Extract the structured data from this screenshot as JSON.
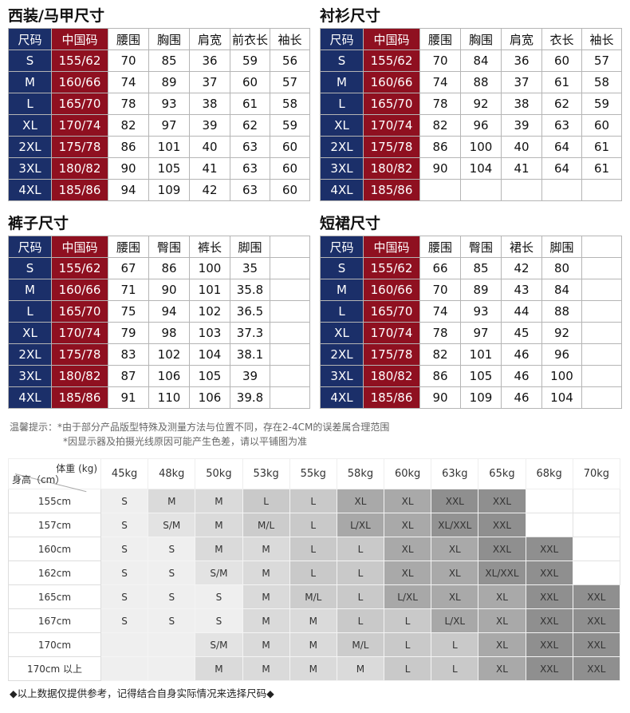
{
  "tables": [
    {
      "title": "西装/马甲尺寸",
      "headers": [
        "尺码",
        "中国码",
        "腰围",
        "胸围",
        "肩宽",
        "前衣长",
        "袖长"
      ],
      "rows": [
        [
          "S",
          "155/62",
          "70",
          "85",
          "36",
          "59",
          "56"
        ],
        [
          "M",
          "160/66",
          "74",
          "89",
          "37",
          "60",
          "57"
        ],
        [
          "L",
          "165/70",
          "78",
          "93",
          "38",
          "61",
          "58"
        ],
        [
          "XL",
          "170/74",
          "82",
          "97",
          "39",
          "62",
          "59"
        ],
        [
          "2XL",
          "175/78",
          "86",
          "101",
          "40",
          "63",
          "60"
        ],
        [
          "3XL",
          "180/82",
          "90",
          "105",
          "41",
          "63",
          "60"
        ],
        [
          "4XL",
          "185/86",
          "94",
          "109",
          "42",
          "63",
          "60"
        ]
      ]
    },
    {
      "title": "衬衫尺寸",
      "headers": [
        "尺码",
        "中国码",
        "腰围",
        "胸围",
        "肩宽",
        "衣长",
        "袖长"
      ],
      "rows": [
        [
          "S",
          "155/62",
          "70",
          "84",
          "36",
          "60",
          "57"
        ],
        [
          "M",
          "160/66",
          "74",
          "88",
          "37",
          "61",
          "58"
        ],
        [
          "L",
          "165/70",
          "78",
          "92",
          "38",
          "62",
          "59"
        ],
        [
          "XL",
          "170/74",
          "82",
          "96",
          "39",
          "63",
          "60"
        ],
        [
          "2XL",
          "175/78",
          "86",
          "100",
          "40",
          "64",
          "61"
        ],
        [
          "3XL",
          "180/82",
          "90",
          "104",
          "41",
          "64",
          "61"
        ],
        [
          "4XL",
          "185/86",
          "",
          "",
          "",
          "",
          ""
        ]
      ]
    },
    {
      "title": "裤子尺寸",
      "headers": [
        "尺码",
        "中国码",
        "腰围",
        "臀围",
        "裤长",
        "脚围",
        ""
      ],
      "rows": [
        [
          "S",
          "155/62",
          "67",
          "86",
          "100",
          "35",
          ""
        ],
        [
          "M",
          "160/66",
          "71",
          "90",
          "101",
          "35.8",
          ""
        ],
        [
          "L",
          "165/70",
          "75",
          "94",
          "102",
          "36.5",
          ""
        ],
        [
          "XL",
          "170/74",
          "79",
          "98",
          "103",
          "37.3",
          ""
        ],
        [
          "2XL",
          "175/78",
          "83",
          "102",
          "104",
          "38.1",
          ""
        ],
        [
          "3XL",
          "180/82",
          "87",
          "106",
          "105",
          "39",
          ""
        ],
        [
          "4XL",
          "185/86",
          "91",
          "110",
          "106",
          "39.8",
          ""
        ]
      ]
    },
    {
      "title": "短裙尺寸",
      "headers": [
        "尺码",
        "中国码",
        "腰围",
        "臀围",
        "裙长",
        "脚围",
        ""
      ],
      "rows": [
        [
          "S",
          "155/62",
          "66",
          "85",
          "42",
          "80",
          ""
        ],
        [
          "M",
          "160/66",
          "70",
          "89",
          "43",
          "84",
          ""
        ],
        [
          "L",
          "165/70",
          "74",
          "93",
          "44",
          "88",
          ""
        ],
        [
          "XL",
          "170/74",
          "78",
          "97",
          "45",
          "92",
          ""
        ],
        [
          "2XL",
          "175/78",
          "82",
          "101",
          "46",
          "96",
          ""
        ],
        [
          "3XL",
          "180/82",
          "86",
          "105",
          "46",
          "100",
          ""
        ],
        [
          "4XL",
          "185/86",
          "90",
          "109",
          "46",
          "104",
          ""
        ]
      ]
    }
  ],
  "notes": {
    "line1": "温馨提示：*由于部分产品版型特殊及测量方法与位置不同，存在2-4CM的误差属合理范围",
    "line2": "*因显示器及拍摄光线原因可能产生色差，请以平铺图为准"
  },
  "grid": {
    "weight_label": "体重 (kg)",
    "height_label": "身高（cm）",
    "weights": [
      "45kg",
      "48kg",
      "50kg",
      "53kg",
      "55kg",
      "58kg",
      "60kg",
      "63kg",
      "65kg",
      "68kg",
      "70kg"
    ],
    "rows": [
      {
        "h": "155cm",
        "s": [
          "S",
          "M",
          "M",
          "L",
          "L",
          "XL",
          "XL",
          "XXL",
          "XXL",
          null,
          null
        ]
      },
      {
        "h": "157cm",
        "s": [
          "S",
          "S/M",
          "M",
          "M/L",
          "L",
          "L/XL",
          "XL",
          "XL/XXL",
          "XXL",
          null,
          null
        ]
      },
      {
        "h": "160cm",
        "s": [
          "S",
          "S",
          "M",
          "M",
          "L",
          "L",
          "XL",
          "XL",
          "XXL",
          "XXL",
          null
        ]
      },
      {
        "h": "162cm",
        "s": [
          "S",
          "S",
          "S/M",
          "M",
          "L",
          "L",
          "XL",
          "XL",
          "XL/XXL",
          "XXL",
          null
        ]
      },
      {
        "h": "165cm",
        "s": [
          "S",
          "S",
          "S",
          "M",
          "M/L",
          "L",
          "L/XL",
          "XL",
          "XL",
          "XXL",
          "XXL"
        ]
      },
      {
        "h": "167cm",
        "s": [
          "S",
          "S",
          "S",
          "M",
          "M",
          "L",
          "L",
          "L/XL",
          "XL",
          "XXL",
          "XXL"
        ]
      },
      {
        "h": "170cm",
        "s": [
          "",
          "",
          "S/M",
          "M",
          "M",
          "M/L",
          "L",
          "L",
          "XL",
          "XXL",
          "XXL"
        ]
      },
      {
        "h": "170cm 以上",
        "s": [
          "",
          "",
          "M",
          "M",
          "M",
          "M",
          "L",
          "L",
          "XL",
          "XXL",
          "XXL"
        ]
      }
    ],
    "colors": {
      "": "#efefef",
      "S": "#efefef",
      "S/M": "#e3e3e3",
      "M": "#dadada",
      "M/L": "#cccccc",
      "L": "#c9c9c9",
      "L/XL": "#a8a8a8",
      "XL": "#a9a9a9",
      "XL/XXL": "#929292",
      "XXL": "#8f8f8f"
    }
  },
  "footer": "◆以上数据仅提供参考，记得结合自身实际情况来选择尺码◆"
}
